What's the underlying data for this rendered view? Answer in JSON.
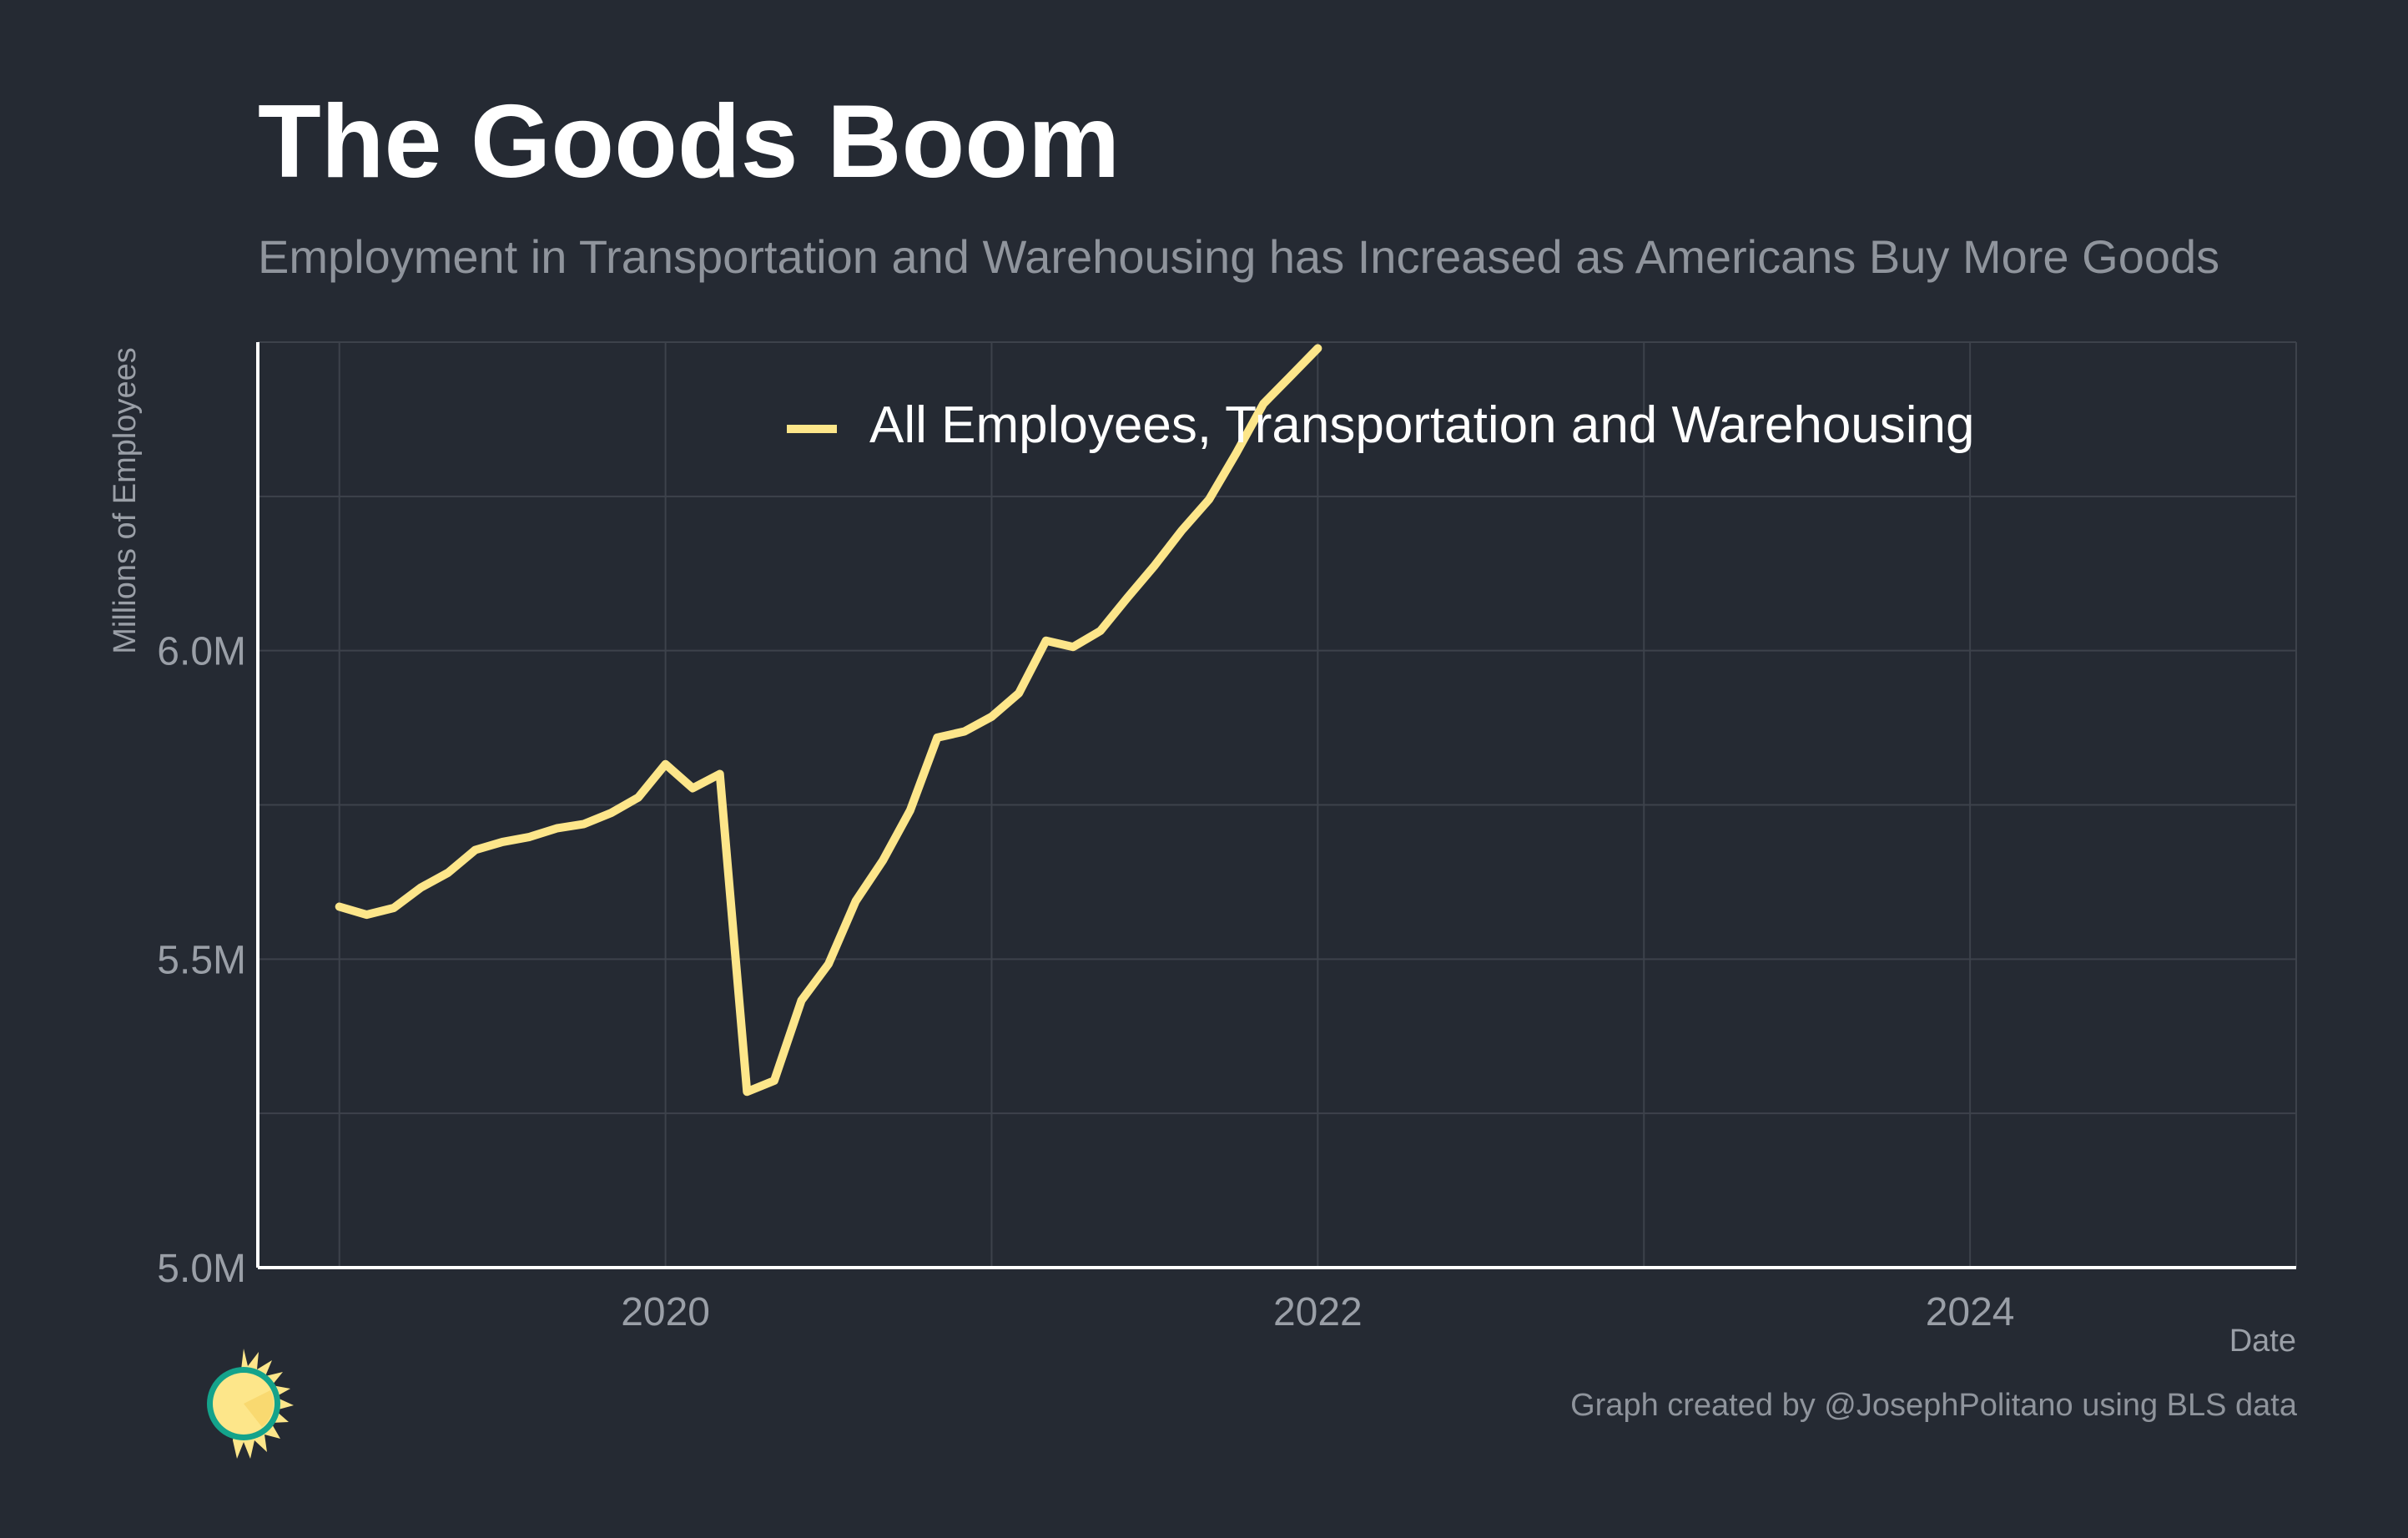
{
  "header": {
    "title": "The Goods Boom",
    "subtitle": "Employment in Transportation and Warehousing has Increased as Americans Buy More Goods"
  },
  "caption": "Graph created by @JosephPolitano using BLS data",
  "logo": {
    "icon": "sun-logo-icon",
    "colors": {
      "face": "#fde68a",
      "ring": "#14a38b",
      "rays": "#fde68a"
    }
  },
  "colors": {
    "background": "#252a33",
    "grid": "#3d424b",
    "axis": "#ffffff",
    "tick_text": "#9a9fa7",
    "line": "#fde68a"
  },
  "chart_data": {
    "type": "line",
    "title": "The Goods Boom",
    "subtitle": "Employment in Transportation and Warehousing has Increased as Americans Buy More Goods",
    "xlabel": "Date",
    "ylabel": "Millions of Employees",
    "x_range": [
      "2018-10",
      "2025-01"
    ],
    "ylim": [
      5.0,
      6.5
    ],
    "x_ticks": [
      {
        "date": "2020-01",
        "label": "2020"
      },
      {
        "date": "2022-01",
        "label": "2022"
      },
      {
        "date": "2024-01",
        "label": "2024"
      }
    ],
    "x_minor_ticks": [
      "2019-01",
      "2021-01",
      "2023-01",
      "2025-01"
    ],
    "y_ticks": [
      {
        "value": 5.0,
        "label": "5.0M"
      },
      {
        "value": 5.5,
        "label": "5.5M"
      },
      {
        "value": 6.0,
        "label": "6.0M"
      }
    ],
    "y_minor_ticks": [
      5.25,
      5.75,
      6.25,
      6.5
    ],
    "grid": true,
    "legend": {
      "placement": "top-center"
    },
    "series": [
      {
        "name": "All Employees, Transportation and Warehousing",
        "color": "#fde68a",
        "x": [
          "2019-01",
          "2019-02",
          "2019-03",
          "2019-04",
          "2019-05",
          "2019-06",
          "2019-07",
          "2019-08",
          "2019-09",
          "2019-10",
          "2019-11",
          "2019-12",
          "2020-01",
          "2020-02",
          "2020-03",
          "2020-04",
          "2020-05",
          "2020-06",
          "2020-07",
          "2020-08",
          "2020-09",
          "2020-10",
          "2020-11",
          "2020-12",
          "2021-01",
          "2021-02",
          "2021-03",
          "2021-04",
          "2021-05",
          "2021-06",
          "2021-07",
          "2021-08",
          "2021-09",
          "2021-10",
          "2021-11",
          "2021-12",
          "2022-01"
        ],
        "y": [
          5.585,
          5.572,
          5.583,
          5.616,
          5.64,
          5.677,
          5.69,
          5.698,
          5.712,
          5.719,
          5.737,
          5.762,
          5.816,
          5.777,
          5.8,
          5.285,
          5.303,
          5.433,
          5.492,
          5.594,
          5.66,
          5.741,
          5.859,
          5.869,
          5.893,
          5.931,
          6.016,
          6.006,
          6.032,
          6.086,
          6.138,
          6.195,
          6.245,
          6.32,
          6.4,
          6.445,
          6.49
        ]
      }
    ]
  }
}
